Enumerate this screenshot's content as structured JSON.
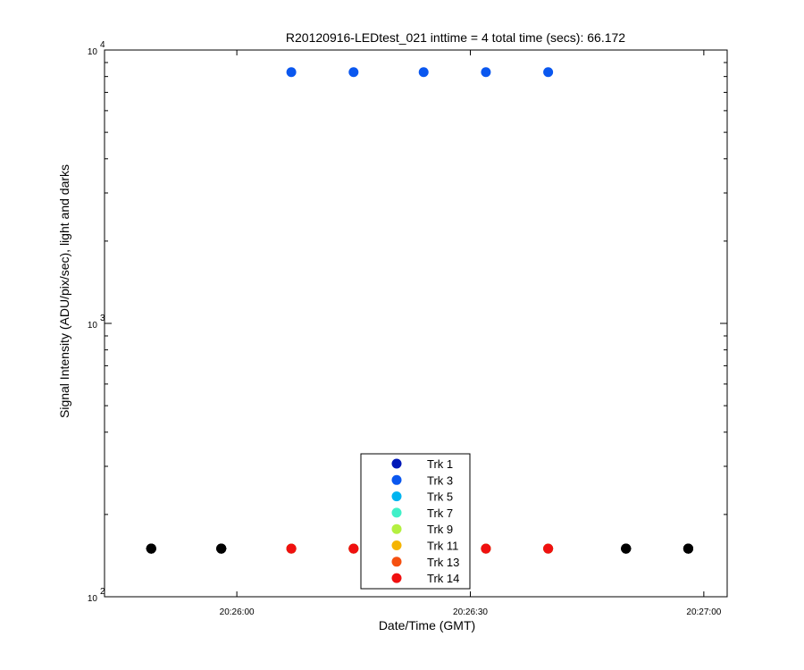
{
  "chart_data": {
    "type": "scatter",
    "title": "R20120916-LEDtest_021 inttime = 4 total time (secs): 66.172",
    "xlabel": "Date/Time (GMT)",
    "ylabel": "Signal Intensity (ADU/pix/sec), light and darks",
    "yscale": "log",
    "ylim": [
      100,
      10000
    ],
    "xlim": [
      "20:25:43",
      "20:27:03"
    ],
    "x_ticks": [
      "20:26:00",
      "20:26:30",
      "20:27:00"
    ],
    "y_ticks": [
      {
        "base": "10",
        "exp": "2",
        "value": 100
      },
      {
        "base": "10",
        "exp": "3",
        "value": 1000
      },
      {
        "base": "10",
        "exp": "4",
        "value": 10000
      }
    ],
    "grid": false,
    "legend_position": "bottom-center",
    "light_times": [
      "20:26:07",
      "20:26:15",
      "20:26:24",
      "20:26:32",
      "20:26:40"
    ],
    "dark_times": [
      "20:25:49",
      "20:25:58",
      "20:26:50",
      "20:26:58"
    ],
    "series": [
      {
        "name": "Trk 1",
        "color": "#0018b8",
        "light_value": 150,
        "dark_value": 150
      },
      {
        "name": "Trk 3",
        "color": "#0a57ef",
        "light_value": 8300,
        "dark_value": 150
      },
      {
        "name": "Trk 5",
        "color": "#00b4f0",
        "light_value": 150,
        "dark_value": 150
      },
      {
        "name": "Trk 7",
        "color": "#40f0c8",
        "light_value": 150,
        "dark_value": 150
      },
      {
        "name": "Trk 9",
        "color": "#b4f040",
        "light_value": 150,
        "dark_value": 150
      },
      {
        "name": "Trk 11",
        "color": "#f5b400",
        "light_value": 150,
        "dark_value": 150
      },
      {
        "name": "Trk 13",
        "color": "#f55010",
        "light_value": 150,
        "dark_value": 150
      },
      {
        "name": "Trk 14",
        "color": "#f01010",
        "light_value": 150,
        "dark_value": 150
      }
    ],
    "dark_color": "#000000"
  }
}
